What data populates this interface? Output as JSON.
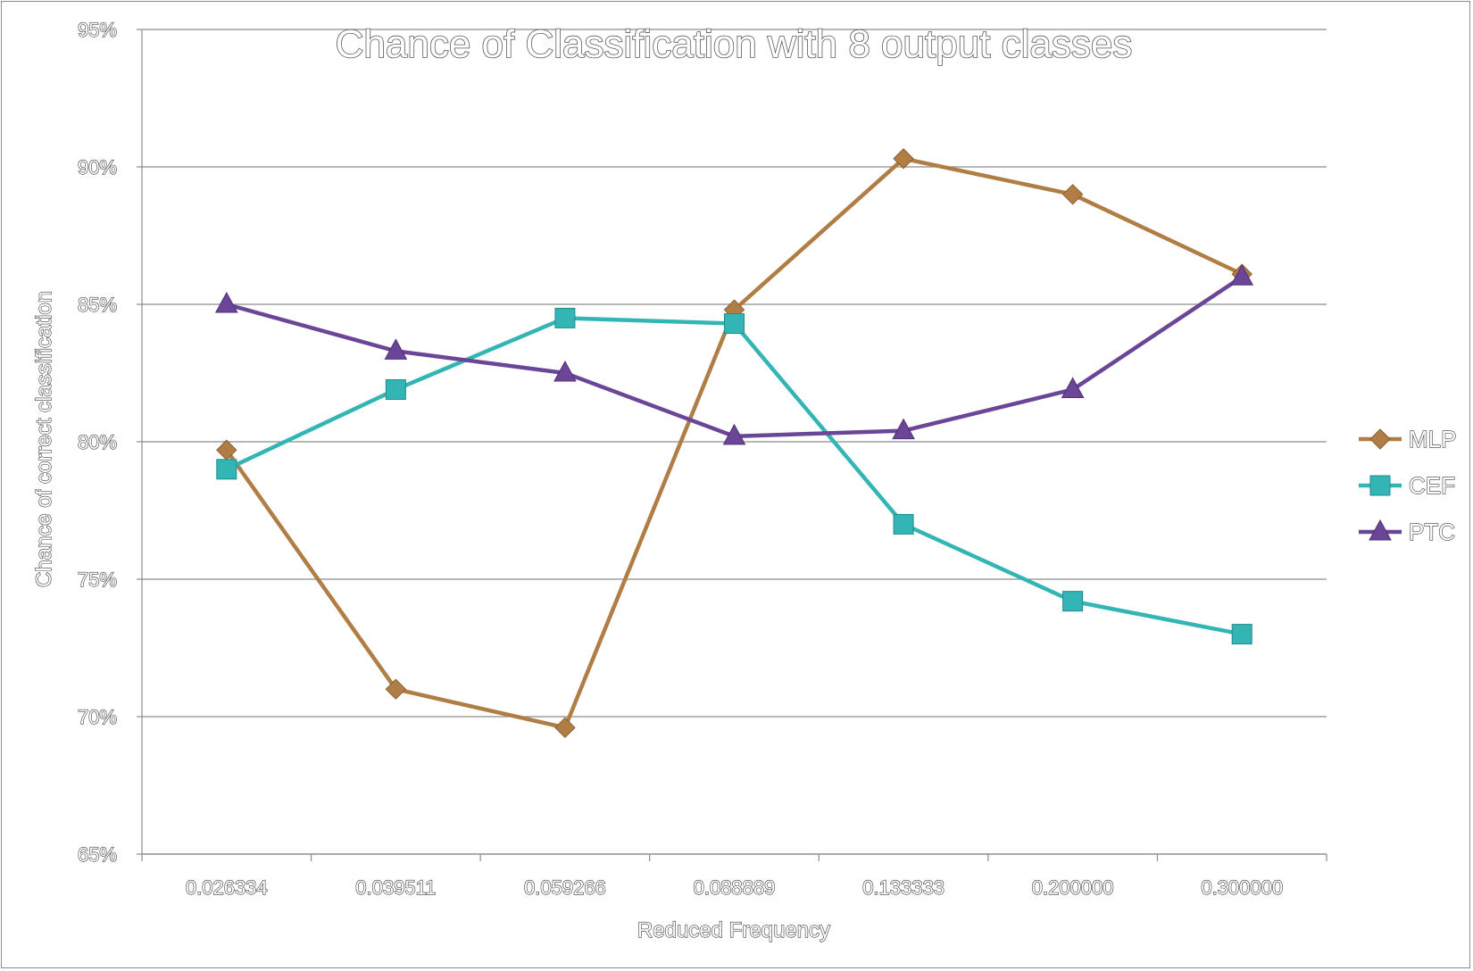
{
  "chart_data": {
    "type": "line",
    "title": "Chance of Classification with 8 output classes",
    "xlabel": "Reduced Frequency",
    "ylabel": "Chance of correct classification",
    "categories": [
      "0.026334",
      "0.039511",
      "0.059266",
      "0.088889",
      "0.133333",
      "0.200000",
      "0.300000"
    ],
    "ylim": [
      0.65,
      0.95
    ],
    "yticks": [
      0.65,
      0.7,
      0.75,
      0.8,
      0.85,
      0.9,
      0.95
    ],
    "ytick_labels": [
      "65%",
      "70%",
      "75%",
      "80%",
      "85%",
      "90%",
      "95%"
    ],
    "grid": true,
    "legend_position": "right",
    "series": [
      {
        "name": "MLP",
        "color": "#b07d44",
        "marker": "diamond",
        "values": [
          0.797,
          0.71,
          0.696,
          0.848,
          0.903,
          0.89,
          0.861
        ]
      },
      {
        "name": "CEF",
        "color": "#33b5b5",
        "marker": "square",
        "values": [
          0.79,
          0.819,
          0.845,
          0.843,
          0.77,
          0.742,
          0.73
        ]
      },
      {
        "name": "PTC",
        "color": "#6a4598",
        "marker": "triangle",
        "values": [
          0.85,
          0.833,
          0.825,
          0.802,
          0.804,
          0.819,
          0.86
        ]
      }
    ]
  }
}
